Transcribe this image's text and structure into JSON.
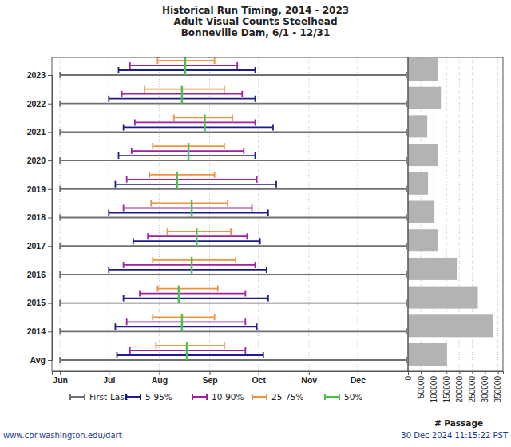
{
  "chart_data": [
    {
      "type": "range",
      "title": "Historical Run Timing, 2014 - 2023",
      "subtitle": [
        "Adult Visual Counts Steelhead",
        "Bonneville Dam, 6/1 - 12/31"
      ],
      "categories": [
        "2023",
        "2022",
        "2021",
        "2020",
        "2019",
        "2018",
        "2017",
        "2016",
        "2015",
        "2014",
        "Avg"
      ],
      "xlim": [
        -5,
        214
      ],
      "xticks": [
        {
          "value": 0,
          "label": "Jun"
        },
        {
          "value": 30,
          "label": "Jul"
        },
        {
          "value": 61,
          "label": "Aug"
        },
        {
          "value": 92,
          "label": "Sep"
        },
        {
          "value": 122,
          "label": "Oct"
        },
        {
          "value": 153,
          "label": "Nov"
        },
        {
          "value": 183,
          "label": "Dec"
        }
      ],
      "grid": true,
      "legend": "bottom",
      "series": [
        {
          "name": "First-Last",
          "type": "range",
          "color": "#707070",
          "values": [
            [
              0,
              213
            ],
            [
              0,
              213
            ],
            [
              0,
              213
            ],
            [
              0,
              213
            ],
            [
              0,
              213
            ],
            [
              0,
              213
            ],
            [
              0,
              213
            ],
            [
              0,
              213
            ],
            [
              0,
              213
            ],
            [
              0,
              213
            ],
            [
              0,
              213
            ]
          ]
        },
        {
          "name": "5-95%",
          "type": "range",
          "color": "#1c1c8c",
          "values": [
            [
              36,
              120
            ],
            [
              30,
              120
            ],
            [
              39,
              131
            ],
            [
              36,
              120
            ],
            [
              34,
              133
            ],
            [
              30,
              128
            ],
            [
              45,
              123
            ],
            [
              30,
              127
            ],
            [
              39,
              128
            ],
            [
              34,
              121
            ],
            [
              35,
              125
            ]
          ]
        },
        {
          "name": "10-90%",
          "type": "range",
          "color": "#a0209f",
          "values": [
            [
              43,
              109
            ],
            [
              38,
              112
            ],
            [
              46,
              120
            ],
            [
              44,
              113
            ],
            [
              41,
              121
            ],
            [
              39,
              118
            ],
            [
              54,
              115
            ],
            [
              39,
              120
            ],
            [
              49,
              114
            ],
            [
              41,
              114
            ],
            [
              43,
              114
            ]
          ]
        },
        {
          "name": "25-75%",
          "type": "range",
          "color": "#f2913f",
          "values": [
            [
              60,
              95
            ],
            [
              52,
              101
            ],
            [
              70,
              106
            ],
            [
              57,
              101
            ],
            [
              55,
              95
            ],
            [
              56,
              103
            ],
            [
              66,
              105
            ],
            [
              57,
              108
            ],
            [
              60,
              97
            ],
            [
              57,
              95
            ],
            [
              59,
              101
            ]
          ]
        },
        {
          "name": "50%",
          "type": "tick",
          "color": "#4cc24c",
          "values": [
            77,
            75,
            89,
            79,
            72,
            81,
            84,
            81,
            73,
            75,
            78
          ]
        }
      ],
      "annotations": [
        "www.cbr.washington.edu/dart",
        "30 Dec 2024 11:15:22 PST"
      ]
    },
    {
      "type": "bar",
      "orientation": "horizontal",
      "x_label": "# Passage",
      "values": [
        115000,
        128000,
        75000,
        115000,
        78000,
        103000,
        118000,
        190000,
        272000,
        330000,
        152000
      ],
      "color": "#b3b3b3",
      "xlim": [
        0,
        370000
      ],
      "xticks": [
        0,
        50000,
        100000,
        150000,
        200000,
        250000,
        300000,
        350000
      ],
      "grid": true
    }
  ]
}
